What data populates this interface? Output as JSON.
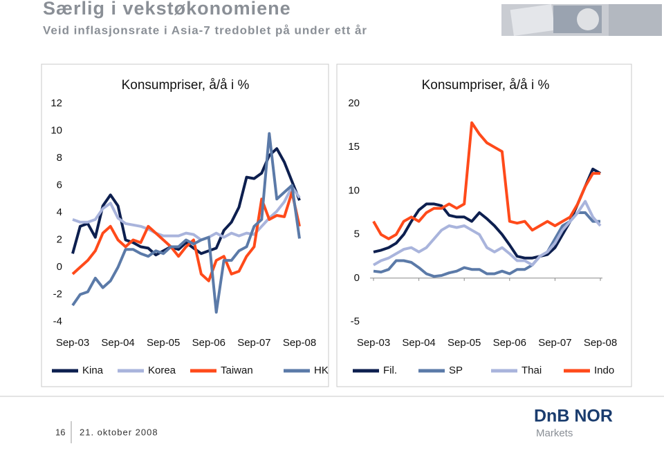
{
  "header": {
    "title": "Særlig i vekstøkonomiene",
    "subtitle": "Veid inflasjonsrate i Asia-7 tredoblet på under ett år"
  },
  "footer": {
    "page": "16",
    "date": "21. oktober 2008",
    "logo": "DnB NOR",
    "logo_sub": "Markets"
  },
  "chart_data": [
    {
      "type": "line",
      "title": "Konsumpriser, å/å i %",
      "categories": [
        "Sep-03",
        null,
        null,
        null,
        null,
        null,
        "Sep-04",
        null,
        null,
        null,
        null,
        null,
        "Sep-05",
        null,
        null,
        null,
        null,
        null,
        "Sep-06",
        null,
        null,
        null,
        null,
        null,
        "Sep-07",
        null,
        null,
        null,
        null,
        null,
        "Sep-08"
      ],
      "ylim": [
        -4,
        12
      ],
      "yticks": [
        -4,
        -2,
        0,
        2,
        4,
        6,
        8,
        10,
        12
      ],
      "zero_line": false,
      "series": [
        {
          "name": "Kina",
          "color": "#0d1f4f",
          "values": [
            1,
            3,
            3.2,
            2.2,
            4.5,
            5.3,
            4.5,
            2,
            1.8,
            1.5,
            1.4,
            0.9,
            1.2,
            1.5,
            1.3,
            1.8,
            1.4,
            1,
            1.2,
            1.4,
            2.7,
            3.3,
            4.4,
            6.6,
            6.5,
            6.9,
            8.2,
            8.7,
            7.7,
            6.3,
            4.9
          ]
        },
        {
          "name": "Korea",
          "color": "#a9b4dc",
          "values": [
            3.5,
            3.3,
            3.3,
            3.5,
            4.3,
            4.7,
            3.6,
            3.2,
            3.1,
            3.0,
            2.8,
            2.5,
            2.3,
            2.3,
            2.3,
            2.5,
            2.4,
            2.0,
            2.2,
            2.5,
            2.2,
            2.5,
            2.3,
            2.5,
            2.4,
            3.0,
            3.6,
            4.1,
            4.8,
            5.9,
            5.1
          ]
        },
        {
          "name": "Taiwan",
          "color": "#ff4a1a",
          "values": [
            -0.5,
            0,
            0.5,
            1.2,
            2.5,
            3.0,
            2.0,
            1.5,
            2.0,
            1.8,
            3.0,
            2.5,
            2.0,
            1.5,
            0.8,
            1.5,
            2.0,
            -0.5,
            -1.0,
            0.5,
            0.8,
            -0.5,
            -0.3,
            0.8,
            1.5,
            5.0,
            3.5,
            3.8,
            3.7,
            5.5,
            3.0
          ]
        },
        {
          "name": "HK",
          "color": "#5b7aa8",
          "values": [
            -2.8,
            -2.0,
            -1.8,
            -0.8,
            -1.5,
            -1.0,
            0,
            1.3,
            1.3,
            1.0,
            0.8,
            1.2,
            1.0,
            1.5,
            1.5,
            2.0,
            1.7,
            2.0,
            2.2,
            -3.3,
            0.5,
            0.5,
            1.2,
            1.5,
            3.0,
            3.5,
            9.8,
            5.0,
            5.5,
            6.0,
            2.1
          ]
        }
      ]
    },
    {
      "type": "line",
      "title": "Konsumpriser, å/å i %",
      "categories": [
        "Sep-03",
        null,
        null,
        null,
        null,
        null,
        "Sep-04",
        null,
        null,
        null,
        null,
        null,
        "Sep-05",
        null,
        null,
        null,
        null,
        null,
        "Sep-06",
        null,
        null,
        null,
        null,
        null,
        "Sep-07",
        null,
        null,
        null,
        null,
        null,
        "Sep-08"
      ],
      "ylim": [
        -5,
        20
      ],
      "yticks": [
        -5,
        0,
        5,
        10,
        15,
        20
      ],
      "zero_line": true,
      "series": [
        {
          "name": "Fil.",
          "color": "#0d1f4f",
          "values": [
            3.0,
            3.2,
            3.5,
            4.0,
            5.0,
            6.5,
            7.8,
            8.5,
            8.5,
            8.3,
            7.2,
            7.0,
            7.0,
            6.5,
            7.5,
            6.8,
            6.0,
            5.0,
            3.8,
            2.5,
            2.3,
            2.3,
            2.5,
            2.7,
            3.5,
            5.0,
            6.5,
            8.5,
            10.5,
            12.5,
            12.0
          ]
        },
        {
          "name": "SP",
          "color": "#5b7aa8",
          "values": [
            0.8,
            0.7,
            1.0,
            2.0,
            2.0,
            1.8,
            1.2,
            0.5,
            0.2,
            0.3,
            0.6,
            0.8,
            1.2,
            1.0,
            1.0,
            0.5,
            0.5,
            0.8,
            0.5,
            1.0,
            1.0,
            1.5,
            2.5,
            3.0,
            4.5,
            6.0,
            6.5,
            7.5,
            7.5,
            6.5,
            6.5
          ]
        },
        {
          "name": "Thai",
          "color": "#a9b4dc",
          "values": [
            1.5,
            2.0,
            2.3,
            2.8,
            3.3,
            3.5,
            3.0,
            3.5,
            4.5,
            5.5,
            6.0,
            5.8,
            6.0,
            5.5,
            5.0,
            3.5,
            3.0,
            3.5,
            2.8,
            2.0,
            2.0,
            1.5,
            2.5,
            3.0,
            4.0,
            5.5,
            6.5,
            7.5,
            8.8,
            7.0,
            6.0
          ]
        },
        {
          "name": "Indo",
          "color": "#ff4a1a",
          "values": [
            6.5,
            5.0,
            4.5,
            5.0,
            6.5,
            7.0,
            6.5,
            7.5,
            8.0,
            8.0,
            8.5,
            8.0,
            8.5,
            17.8,
            16.5,
            15.5,
            15.0,
            14.5,
            6.5,
            6.3,
            6.5,
            5.5,
            6.0,
            6.5,
            6.0,
            6.5,
            7.0,
            8.5,
            10.5,
            12.0,
            12.0
          ]
        }
      ]
    }
  ]
}
